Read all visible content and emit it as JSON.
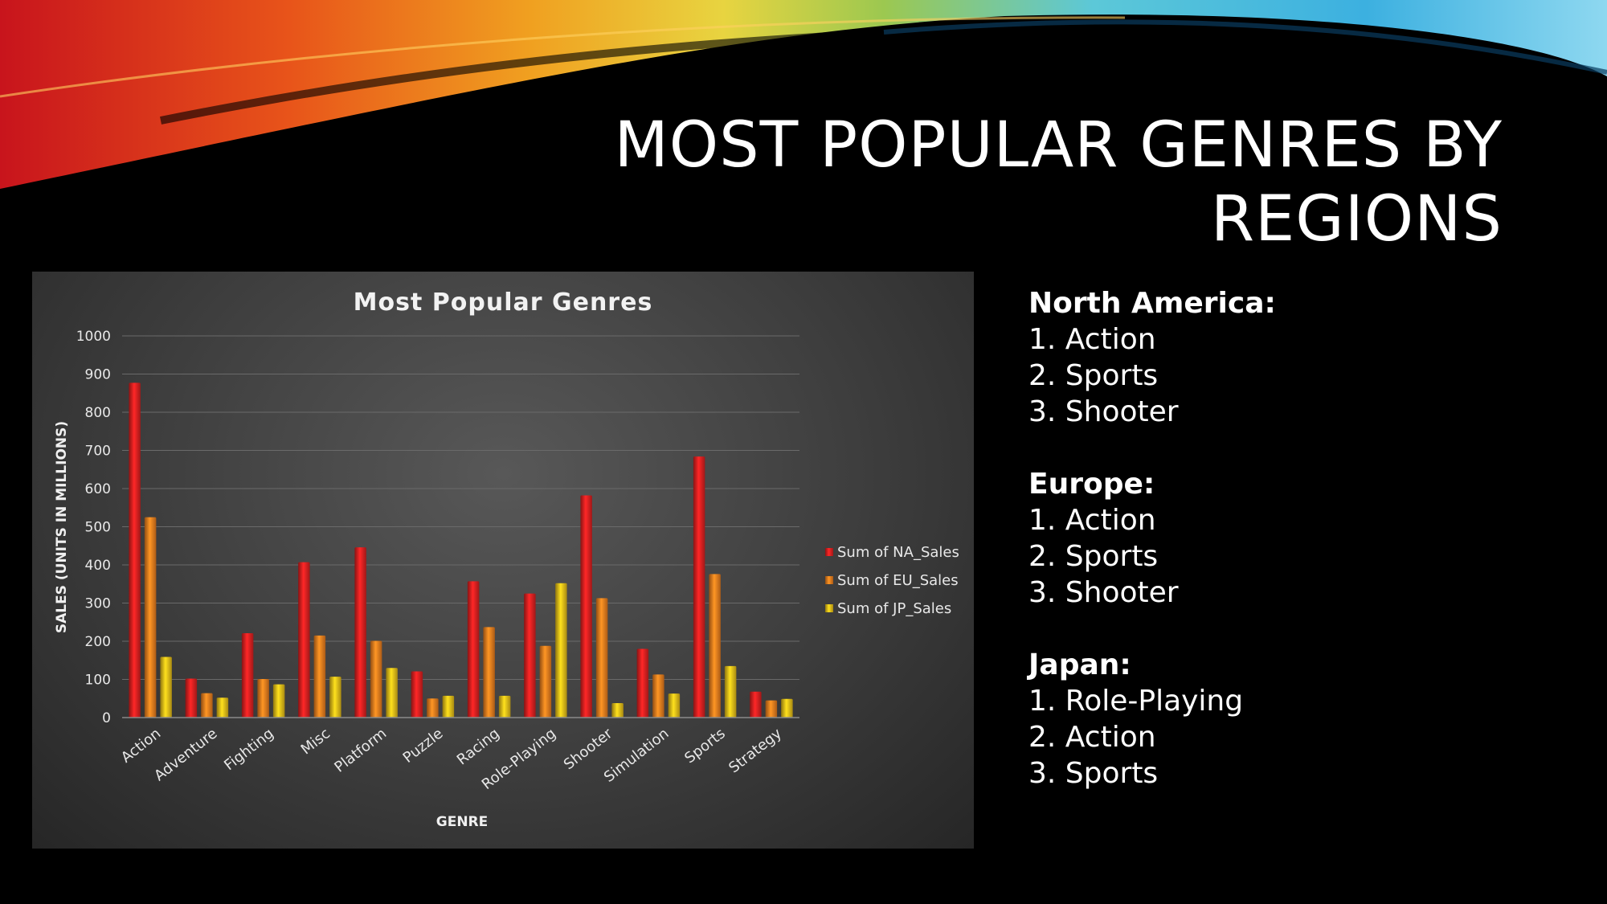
{
  "slide": {
    "title_line1": "MOST POPULAR GENRES BY",
    "title_line2": "REGIONS"
  },
  "chart_data": {
    "type": "bar",
    "title": "Most Popular Genres",
    "xlabel": "GENRE",
    "ylabel": "SALES (UNITS IN MILLIONS)",
    "ylim": [
      0,
      1000
    ],
    "yticks": [
      "0",
      "100",
      "200",
      "300",
      "400",
      "500",
      "600",
      "700",
      "800",
      "900",
      "1000"
    ],
    "grid": true,
    "legend_position": "right",
    "categories": [
      "Action",
      "Adventure",
      "Fighting",
      "Misc",
      "Platform",
      "Puzzle",
      "Racing",
      "Role-Playing",
      "Shooter",
      "Simulation",
      "Sports",
      "Strategy"
    ],
    "series": [
      {
        "name": "Sum of NA_Sales",
        "color": "#e52222",
        "values": [
          877,
          102,
          221,
          407,
          446,
          121,
          357,
          325,
          582,
          180,
          684,
          68
        ]
      },
      {
        "name": "Sum of EU_Sales",
        "color": "#f5821f",
        "values": [
          525,
          64,
          101,
          215,
          201,
          50,
          237,
          188,
          313,
          113,
          376,
          45
        ]
      },
      {
        "name": "Sum of JP_Sales",
        "color": "#f0c419",
        "values": [
          159,
          52,
          87,
          107,
          130,
          57,
          57,
          352,
          38,
          63,
          135,
          49
        ]
      }
    ]
  },
  "regions": [
    {
      "name": "North America:",
      "items": [
        "1. Action",
        "2. Sports",
        "3. Shooter"
      ]
    },
    {
      "name": "Europe:",
      "items": [
        "1. Action",
        "2. Sports",
        "3. Shooter"
      ]
    },
    {
      "name": "Japan:",
      "items": [
        "1. Role-Playing",
        "2. Action",
        "3. Sports"
      ]
    }
  ]
}
